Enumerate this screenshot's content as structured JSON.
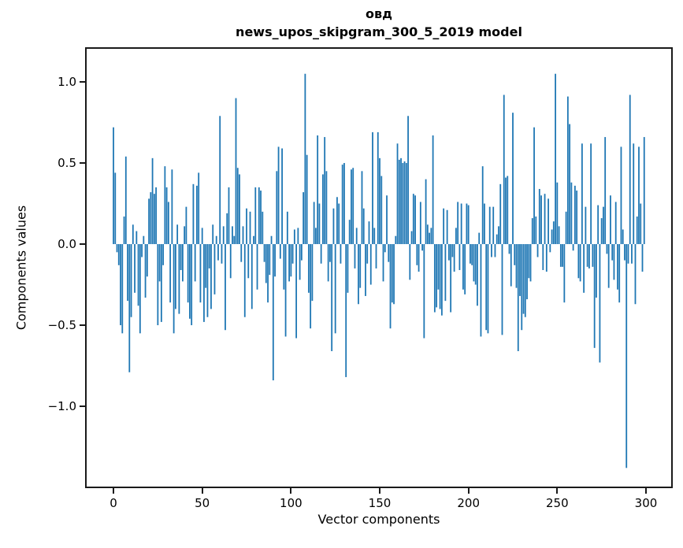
{
  "figure": {
    "title": "овд",
    "subtitle": "news_upos_skipgram_300_5_2019 model"
  },
  "chart_data": {
    "type": "bar",
    "title": "овд",
    "subtitle": "news_upos_skipgram_300_5_2019 model",
    "xlabel": "Vector components",
    "ylabel": "Components values",
    "bar_color": "#1f77b4",
    "spine_color": "#1a1a1a",
    "grid": false,
    "legend": null,
    "n_components": 300,
    "x_is_index": true,
    "xlim": [
      -15.1,
      314.2
    ],
    "ylim": [
      -1.495,
      1.204
    ],
    "x_ticks": [
      {
        "v": 0,
        "label": "0"
      },
      {
        "v": 50,
        "label": "50"
      },
      {
        "v": 100,
        "label": "100"
      },
      {
        "v": 150,
        "label": "150"
      },
      {
        "v": 200,
        "label": "200"
      },
      {
        "v": 250,
        "label": "250"
      },
      {
        "v": 300,
        "label": "300"
      }
    ],
    "y_ticks": [
      {
        "v": 1.0,
        "label": "1.0"
      },
      {
        "v": 0.5,
        "label": "0.5"
      },
      {
        "v": 0.0,
        "label": "0.0"
      },
      {
        "v": -0.5,
        "label": "−0.5"
      },
      {
        "v": -1.0,
        "label": "−1.0"
      }
    ],
    "values": [
      0.72,
      0.44,
      -0.05,
      -0.13,
      -0.5,
      -0.55,
      0.17,
      0.54,
      -0.35,
      -0.79,
      -0.45,
      0.12,
      -0.3,
      0.08,
      -0.38,
      -0.55,
      -0.08,
      0.05,
      -0.33,
      -0.2,
      0.28,
      0.32,
      0.53,
      0.31,
      0.35,
      -0.5,
      -0.23,
      -0.48,
      -0.13,
      0.48,
      0.35,
      0.26,
      -0.36,
      0.46,
      -0.55,
      -0.4,
      0.12,
      -0.43,
      -0.16,
      -0.23,
      0.11,
      0.23,
      -0.36,
      -0.46,
      -0.5,
      0.37,
      -0.23,
      0.36,
      0.44,
      -0.36,
      0.1,
      -0.48,
      -0.27,
      -0.45,
      -0.15,
      -0.4,
      0.12,
      -0.31,
      0.05,
      -0.1,
      0.79,
      -0.12,
      0.11,
      -0.53,
      0.19,
      0.35,
      -0.21,
      0.11,
      0.05,
      0.9,
      0.47,
      0.43,
      -0.11,
      0.11,
      -0.45,
      0.22,
      -0.21,
      0.2,
      -0.4,
      0.05,
      0.35,
      -0.28,
      0.35,
      0.33,
      0.2,
      -0.11,
      -0.24,
      -0.36,
      -0.19,
      0.05,
      -0.84,
      -0.2,
      0.45,
      0.6,
      -0.09,
      0.59,
      -0.28,
      -0.57,
      0.2,
      -0.23,
      -0.2,
      -0.12,
      0.09,
      -0.58,
      0.1,
      -0.22,
      -0.1,
      0.32,
      1.05,
      0.55,
      -0.3,
      -0.52,
      -0.35,
      0.26,
      0.1,
      0.67,
      0.25,
      -0.12,
      0.43,
      0.66,
      0.45,
      -0.23,
      -0.11,
      -0.66,
      0.22,
      -0.55,
      0.29,
      0.25,
      -0.12,
      0.49,
      0.5,
      -0.82,
      -0.3,
      0.15,
      0.46,
      0.47,
      -0.15,
      0.1,
      -0.37,
      -0.27,
      0.45,
      0.22,
      -0.32,
      -0.12,
      0.14,
      -0.25,
      0.69,
      0.1,
      -0.15,
      0.69,
      0.53,
      0.42,
      -0.23,
      -0.05,
      0.3,
      -0.11,
      -0.52,
      -0.36,
      -0.37,
      0.05,
      0.62,
      0.52,
      0.53,
      0.5,
      0.51,
      0.5,
      0.79,
      -0.22,
      0.08,
      0.31,
      0.3,
      -0.13,
      -0.17,
      0.26,
      -0.04,
      -0.58,
      0.4,
      0.12,
      0.07,
      0.1,
      0.67,
      -0.42,
      -0.39,
      -0.28,
      -0.4,
      -0.44,
      0.22,
      -0.35,
      0.21,
      -0.1,
      -0.42,
      -0.08,
      -0.17,
      0.1,
      0.26,
      -0.16,
      0.25,
      -0.28,
      -0.31,
      0.25,
      0.24,
      -0.12,
      -0.13,
      -0.23,
      -0.25,
      -0.38,
      0.07,
      -0.57,
      0.48,
      0.25,
      -0.53,
      -0.55,
      0.23,
      -0.08,
      0.23,
      -0.08,
      0.06,
      0.11,
      0.37,
      -0.56,
      0.92,
      0.41,
      0.42,
      -0.06,
      -0.26,
      0.81,
      -0.13,
      -0.27,
      -0.66,
      -0.32,
      -0.53,
      -0.43,
      -0.45,
      -0.34,
      -0.21,
      -0.23,
      0.16,
      0.72,
      0.17,
      -0.08,
      0.34,
      0.3,
      -0.16,
      0.31,
      -0.17,
      0.28,
      -0.05,
      0.09,
      0.14,
      1.05,
      0.38,
      0.11,
      -0.14,
      -0.14,
      -0.36,
      0.2,
      0.91,
      0.74,
      0.38,
      -0.04,
      0.36,
      0.33,
      -0.21,
      -0.23,
      0.62,
      -0.3,
      0.23,
      -0.14,
      -0.15,
      0.62,
      -0.14,
      -0.64,
      -0.33,
      0.24,
      -0.73,
      0.16,
      0.23,
      0.66,
      -0.06,
      -0.27,
      0.3,
      -0.1,
      -0.22,
      0.26,
      -0.28,
      -0.36,
      0.6,
      0.09,
      -0.1,
      -1.38,
      -0.12,
      0.92,
      -0.12,
      0.62,
      -0.37,
      0.17,
      0.6,
      0.25,
      -0.17,
      0.66
    ]
  }
}
